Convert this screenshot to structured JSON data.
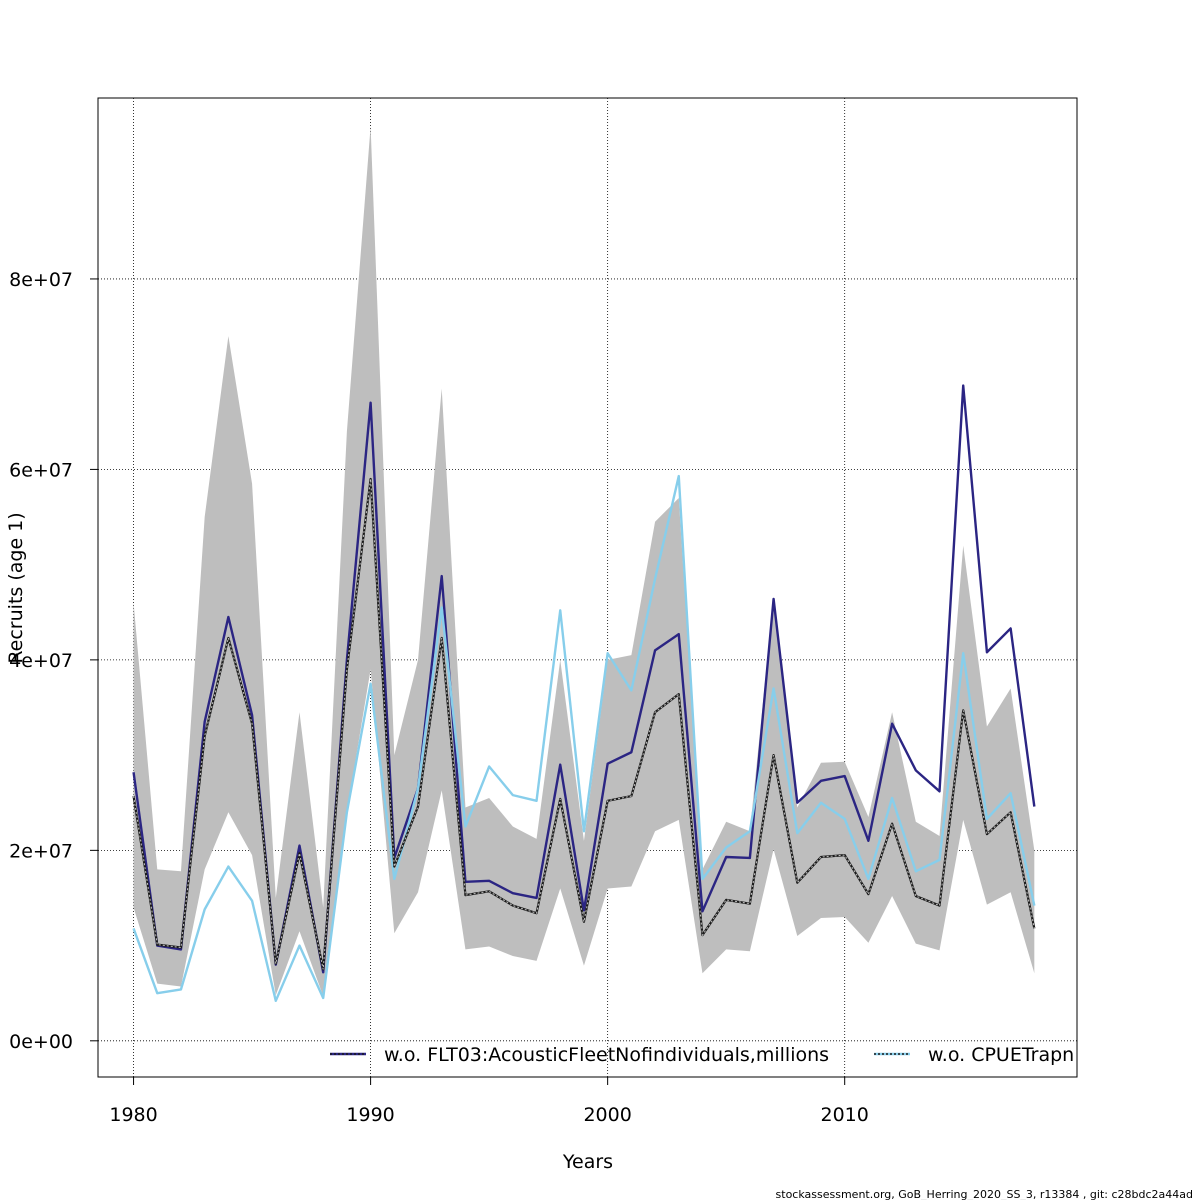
{
  "chart_data": {
    "type": "line",
    "xlabel": "Years",
    "ylabel": "Recruits (age 1)",
    "xlim": [
      1978.5,
      2019.8
    ],
    "ylim": [
      -3800000,
      99000000
    ],
    "x_ticks": [
      1980,
      1990,
      2000,
      2010
    ],
    "x_tick_labels": [
      "1980",
      "1990",
      "2000",
      "2010"
    ],
    "y_ticks": [
      0,
      20000000,
      40000000,
      60000000,
      80000000
    ],
    "y_tick_labels": [
      "0e+00",
      "2e+07",
      "4e+07",
      "6e+07",
      "8e+07"
    ],
    "grid": true,
    "legend_placement": "bottom-right",
    "x": [
      1980,
      1981,
      1982,
      1983,
      1984,
      1985,
      1986,
      1987,
      1988,
      1989,
      1990,
      1991,
      1992,
      1993,
      1994,
      1995,
      1996,
      1997,
      1998,
      1999,
      2000,
      2001,
      2002,
      2003,
      2004,
      2005,
      2006,
      2007,
      2008,
      2009,
      2010,
      2011,
      2012,
      2013,
      2014,
      2015,
      2016,
      2017,
      2018
    ],
    "band": {
      "color": "#bebebe",
      "upper": [
        46000000,
        18000000,
        17800000,
        55000000,
        74000000,
        58500000,
        15000000,
        34500000,
        14000000,
        64000000,
        96000000,
        30000000,
        40000000,
        68500000,
        24500000,
        25500000,
        22500000,
        21200000,
        40000000,
        21000000,
        40000000,
        40500000,
        54500000,
        57000000,
        18000000,
        23000000,
        22000000,
        46500000,
        24500000,
        29200000,
        29300000,
        23500000,
        34500000,
        23000000,
        21500000,
        52000000,
        33000000,
        37000000,
        20000000
      ],
      "lower": [
        14000000,
        6000000,
        5700000,
        18000000,
        24000000,
        19500000,
        4800000,
        11500000,
        4700000,
        24000000,
        39000000,
        11300000,
        15600000,
        26300000,
        9600000,
        9900000,
        8900000,
        8400000,
        16000000,
        7900000,
        16000000,
        16200000,
        22000000,
        23200000,
        7100000,
        9600000,
        9400000,
        20100000,
        11000000,
        12900000,
        13000000,
        10300000,
        15200000,
        10200000,
        9500000,
        23200000,
        14300000,
        15600000,
        7100000
      ]
    },
    "series": [
      {
        "name": "w.o. FLT03:AcousticFleetNofindividuals,millions",
        "color": "#2b2583",
        "values": [
          28200000,
          10000000,
          9600000,
          33500000,
          44500000,
          34200000,
          8000000,
          20500000,
          7200000,
          40000000,
          67000000,
          19200000,
          26500000,
          48800000,
          16700000,
          16800000,
          15500000,
          15000000,
          29000000,
          13700000,
          29100000,
          30300000,
          41000000,
          42700000,
          13600000,
          19300000,
          19200000,
          46400000,
          25000000,
          27300000,
          27800000,
          21000000,
          33300000,
          28400000,
          26200000,
          68800000,
          40800000,
          43300000,
          24600000
        ]
      },
      {
        "name": "w.o. CPUETrapn",
        "color": "#87ceeb",
        "values": [
          11800000,
          5000000,
          5400000,
          13800000,
          18300000,
          14700000,
          4200000,
          10000000,
          4500000,
          24000000,
          37500000,
          17000000,
          26500000,
          45500000,
          22500000,
          28800000,
          25800000,
          25200000,
          45200000,
          22000000,
          40700000,
          36800000,
          48500000,
          59300000,
          17000000,
          20300000,
          22000000,
          37000000,
          21800000,
          25000000,
          23300000,
          17000000,
          25500000,
          17800000,
          19000000,
          40700000,
          23300000,
          26000000,
          14200000
        ]
      },
      {
        "name": "",
        "color": "#1a1a1a",
        "values": [
          25700000,
          10100000,
          9800000,
          32000000,
          42300000,
          33300000,
          8100000,
          19700000,
          7500000,
          39000000,
          59000000,
          18300000,
          24600000,
          42300000,
          15300000,
          15700000,
          14200000,
          13400000,
          25400000,
          12500000,
          25200000,
          25700000,
          34500000,
          36400000,
          11100000,
          14800000,
          14400000,
          30000000,
          16600000,
          19300000,
          19500000,
          15400000,
          22800000,
          15200000,
          14200000,
          34700000,
          21700000,
          24000000,
          11800000
        ]
      }
    ]
  },
  "footer": "stockassessment.org, GoB_Herring_2020_SS_3, r13384 , git: c28bdc2a44ad"
}
